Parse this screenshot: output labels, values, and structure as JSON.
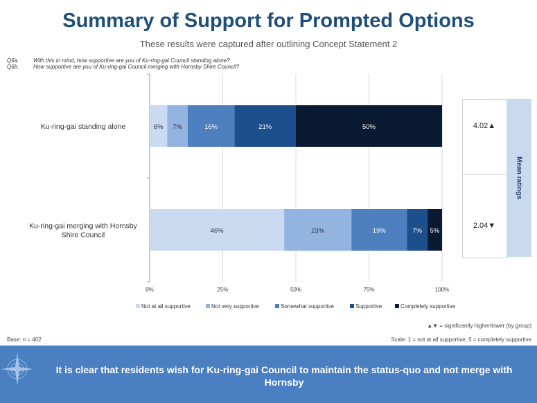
{
  "title": "Summary of Support for Prompted Options",
  "subtitle": "These results were captured after outlining Concept Statement 2",
  "questions": [
    {
      "code": "Q6a.",
      "text": "With this in mind, how supportive are you of Ku-ring-gai Council standing alone?"
    },
    {
      "code": "Q6b.",
      "text": "How supportive are you of Ku-ring-gai Council merging with Hornsby Shire Council?"
    }
  ],
  "chart_data": {
    "type": "bar",
    "orientation": "horizontal",
    "stacked": true,
    "categories": [
      "Ku-ring-gai standing alone",
      "Ku-ring-gai merging with Hornsby Shire Council"
    ],
    "series": [
      {
        "name": "Not at all supportive",
        "values": [
          6,
          46
        ],
        "labels": [
          "6%",
          "46%"
        ],
        "color": "#c9daf1"
      },
      {
        "name": "Not very supportive",
        "values": [
          7,
          23
        ],
        "labels": [
          "7%",
          "23%"
        ],
        "color": "#93b4e0"
      },
      {
        "name": "Somewhat supportive",
        "values": [
          16,
          19
        ],
        "labels": [
          "16%",
          "19%"
        ],
        "color": "#4e80c0"
      },
      {
        "name": "Supportive",
        "values": [
          21,
          7
        ],
        "labels": [
          "21%",
          "7%"
        ],
        "color": "#1d4f8c"
      },
      {
        "name": "Completely supportive",
        "values": [
          50,
          5
        ],
        "labels": [
          "50%",
          "5%"
        ],
        "color": "#0b1a33"
      }
    ],
    "xticks": [
      "0%",
      "25%",
      "50%",
      "75%",
      "100%"
    ],
    "xlim": [
      0,
      100
    ],
    "grid": true,
    "legend_position": "bottom"
  },
  "mean_ratings": {
    "label": "Mean ratings",
    "values": [
      "4.02▲",
      "2.04▼"
    ]
  },
  "notes": {
    "significance": "▲▼ = significantly higher/lower (by group)",
    "base": "Base: n = 402",
    "scale": "Scale: 1 = not at all supportive, 5 = completely supportive"
  },
  "banner": {
    "text": "It is clear that residents wish for Ku-ring-gai Council to maintain the status-quo and not merge with Hornsby"
  },
  "icons": {
    "banner": "compass-icon"
  }
}
